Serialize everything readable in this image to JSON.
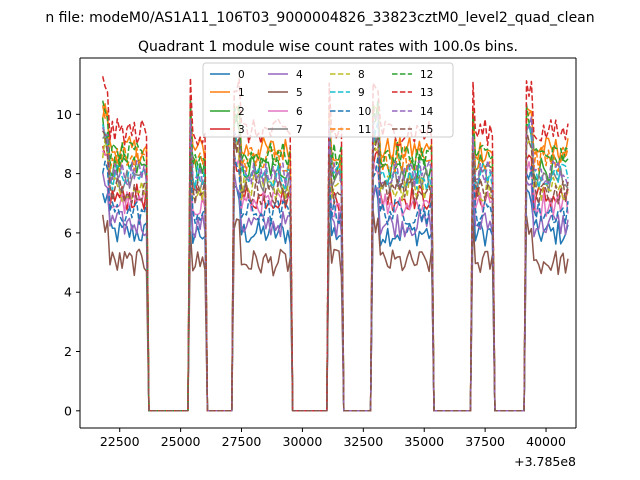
{
  "chart_data": {
    "type": "line",
    "suptitle": "n file: modeM0/AS1A11_106T03_9000004826_33823cztM0_level2_quad_clean",
    "title": "Quadrant 1 module wise count rates with 100.0s bins.",
    "xlabel": "",
    "ylabel": "",
    "x_offset_label": "+3.785e8",
    "x_offset": 378500000,
    "xlim": [
      20870,
      41230
    ],
    "ylim": [
      -0.58,
      11.9
    ],
    "xticks": [
      22500,
      25000,
      27500,
      30000,
      32500,
      35000,
      37500,
      40000
    ],
    "xtick_labels": [
      "22500",
      "25000",
      "27500",
      "30000",
      "32500",
      "35000",
      "37500",
      "40000"
    ],
    "yticks": [
      0,
      2,
      4,
      6,
      8,
      10
    ],
    "ytick_labels": [
      "0",
      "2",
      "4",
      "6",
      "8",
      "10"
    ],
    "bin_seconds": 100.0,
    "legend": {
      "placement": "top-center",
      "columns": 4
    },
    "on_intervals": [
      [
        21800,
        23600
      ],
      [
        25400,
        26000
      ],
      [
        27200,
        29500
      ],
      [
        31100,
        31600
      ],
      [
        32900,
        35300
      ],
      [
        37000,
        37800
      ],
      [
        39200,
        40900
      ]
    ],
    "off_level": 0.0,
    "series": [
      {
        "name": "0",
        "color": "#1f77b4",
        "dash": "solid",
        "level": 6.0
      },
      {
        "name": "1",
        "color": "#ff7f0e",
        "dash": "solid",
        "level": 8.8
      },
      {
        "name": "2",
        "color": "#2ca02c",
        "dash": "solid",
        "level": 8.2
      },
      {
        "name": "3",
        "color": "#d62728",
        "dash": "solid",
        "level": 7.2
      },
      {
        "name": "4",
        "color": "#9467bd",
        "dash": "solid",
        "level": 6.3
      },
      {
        "name": "5",
        "color": "#8c564b",
        "dash": "solid",
        "level": 5.0
      },
      {
        "name": "6",
        "color": "#e377c2",
        "dash": "solid",
        "level": 7.0
      },
      {
        "name": "7",
        "color": "#7f7f7f",
        "dash": "solid",
        "level": 7.8
      },
      {
        "name": "8",
        "color": "#bcbd22",
        "dash": "dashed",
        "level": 7.5
      },
      {
        "name": "9",
        "color": "#17becf",
        "dash": "dashed",
        "level": 7.9
      },
      {
        "name": "10",
        "color": "#1f77b4",
        "dash": "dashed",
        "level": 6.7
      },
      {
        "name": "11",
        "color": "#ff7f0e",
        "dash": "dashed",
        "level": 8.5
      },
      {
        "name": "12",
        "color": "#2ca02c",
        "dash": "dashed",
        "level": 8.6
      },
      {
        "name": "13",
        "color": "#d62728",
        "dash": "dashed",
        "level": 9.4
      },
      {
        "name": "14",
        "color": "#9467bd",
        "dash": "dashed",
        "level": 8.0
      },
      {
        "name": "15",
        "color": "#8c564b",
        "dash": "dashed",
        "level": 7.4
      }
    ]
  }
}
